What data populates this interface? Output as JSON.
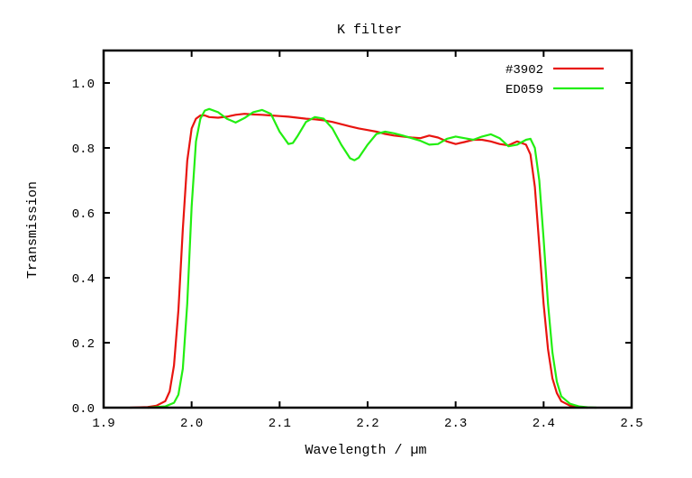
{
  "chart_data": {
    "type": "line",
    "title": "K filter",
    "xlabel": "Wavelength / µm",
    "ylabel": "Transmission",
    "xlim": [
      1.9,
      2.5
    ],
    "ylim": [
      0.0,
      1.1
    ],
    "xticks": [
      1.9,
      2.0,
      2.1,
      2.2,
      2.3,
      2.4,
      2.5
    ],
    "xtick_labels": [
      "1.9",
      "2.0",
      "2.1",
      "2.2",
      "2.3",
      "2.4",
      "2.5"
    ],
    "yticks": [
      0.0,
      0.2,
      0.4,
      0.6,
      0.8,
      1.0
    ],
    "ytick_labels": [
      "0.0",
      "0.2",
      "0.4",
      "0.6",
      "0.8",
      "1.0"
    ],
    "grid": false,
    "legend_position": "top-right",
    "series": [
      {
        "name": "#3902",
        "color": "#e8140f",
        "x": [
          1.93,
          1.95,
          1.96,
          1.97,
          1.975,
          1.98,
          1.985,
          1.99,
          1.995,
          2.0,
          2.005,
          2.01,
          2.015,
          2.02,
          2.03,
          2.04,
          2.05,
          2.06,
          2.07,
          2.08,
          2.09,
          2.1,
          2.11,
          2.12,
          2.13,
          2.14,
          2.15,
          2.16,
          2.17,
          2.18,
          2.19,
          2.2,
          2.21,
          2.22,
          2.23,
          2.24,
          2.25,
          2.26,
          2.27,
          2.28,
          2.29,
          2.3,
          2.31,
          2.32,
          2.33,
          2.34,
          2.35,
          2.36,
          2.37,
          2.38,
          2.385,
          2.39,
          2.395,
          2.4,
          2.405,
          2.41,
          2.415,
          2.42,
          2.43,
          2.44,
          2.45
        ],
        "y": [
          0.0,
          0.002,
          0.006,
          0.02,
          0.05,
          0.13,
          0.3,
          0.55,
          0.76,
          0.86,
          0.89,
          0.9,
          0.9,
          0.895,
          0.893,
          0.896,
          0.902,
          0.905,
          0.903,
          0.902,
          0.9,
          0.898,
          0.896,
          0.893,
          0.89,
          0.888,
          0.885,
          0.88,
          0.873,
          0.866,
          0.86,
          0.855,
          0.85,
          0.843,
          0.838,
          0.835,
          0.832,
          0.83,
          0.838,
          0.832,
          0.82,
          0.812,
          0.818,
          0.825,
          0.825,
          0.82,
          0.812,
          0.808,
          0.82,
          0.81,
          0.78,
          0.68,
          0.5,
          0.32,
          0.18,
          0.09,
          0.045,
          0.02,
          0.006,
          0.002,
          0.0
        ]
      },
      {
        "name": "ED059",
        "color": "#22ee11",
        "x": [
          1.95,
          1.97,
          1.98,
          1.985,
          1.99,
          1.995,
          2.0,
          2.005,
          2.01,
          2.015,
          2.02,
          2.03,
          2.04,
          2.05,
          2.06,
          2.07,
          2.08,
          2.09,
          2.1,
          2.11,
          2.115,
          2.12,
          2.13,
          2.14,
          2.15,
          2.16,
          2.17,
          2.18,
          2.185,
          2.19,
          2.2,
          2.21,
          2.22,
          2.23,
          2.24,
          2.25,
          2.26,
          2.27,
          2.28,
          2.29,
          2.3,
          2.31,
          2.32,
          2.33,
          2.34,
          2.35,
          2.36,
          2.37,
          2.38,
          2.385,
          2.39,
          2.395,
          2.4,
          2.405,
          2.41,
          2.415,
          2.42,
          2.43,
          2.44,
          2.45,
          2.46
        ],
        "y": [
          0.0,
          0.004,
          0.015,
          0.04,
          0.12,
          0.32,
          0.62,
          0.82,
          0.89,
          0.915,
          0.92,
          0.91,
          0.89,
          0.878,
          0.892,
          0.91,
          0.917,
          0.905,
          0.85,
          0.812,
          0.815,
          0.835,
          0.88,
          0.895,
          0.89,
          0.86,
          0.81,
          0.768,
          0.762,
          0.77,
          0.81,
          0.843,
          0.85,
          0.845,
          0.838,
          0.83,
          0.822,
          0.81,
          0.812,
          0.828,
          0.835,
          0.83,
          0.825,
          0.835,
          0.842,
          0.83,
          0.805,
          0.81,
          0.825,
          0.828,
          0.8,
          0.7,
          0.52,
          0.32,
          0.17,
          0.08,
          0.035,
          0.012,
          0.004,
          0.001,
          0.0
        ]
      }
    ]
  }
}
